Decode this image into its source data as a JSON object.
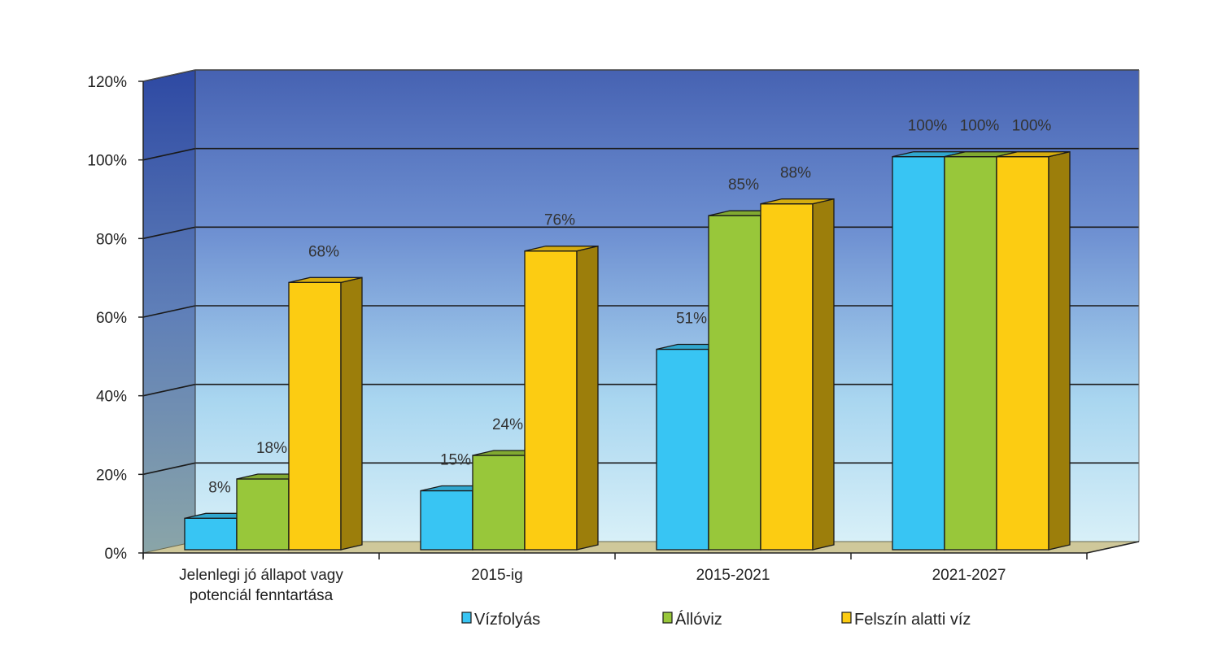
{
  "chart_data": {
    "type": "bar",
    "title": "",
    "xlabel": "",
    "ylabel": "",
    "ylim": [
      0,
      120
    ],
    "y_tick_step": 20,
    "y_tick_labels": [
      "0%",
      "20%",
      "40%",
      "60%",
      "80%",
      "100%",
      "120%"
    ],
    "categories": [
      [
        "Jelenlegi jó állapot vagy",
        "potenciál fenntartása"
      ],
      [
        "2015-ig"
      ],
      [
        "2015-2021"
      ],
      [
        "2021-2027"
      ]
    ],
    "series": [
      {
        "name": "Vízfolyás",
        "values": [
          8,
          15,
          51,
          100
        ],
        "labels": [
          "8%",
          "15%",
          "51%",
          "100%"
        ],
        "color": "#38c5f3"
      },
      {
        "name": "Állóviz",
        "values": [
          18,
          24,
          85,
          100
        ],
        "labels": [
          "18%",
          "24%",
          "85%",
          "100%"
        ],
        "color": "#98c73a"
      },
      {
        "name": "Felszín alatti víz",
        "values": [
          68,
          76,
          88,
          100
        ],
        "labels": [
          "68%",
          "76%",
          "88%",
          "100%"
        ],
        "color": "#fccc12"
      }
    ],
    "grid": true,
    "legend": "bottom",
    "style": "3d"
  }
}
